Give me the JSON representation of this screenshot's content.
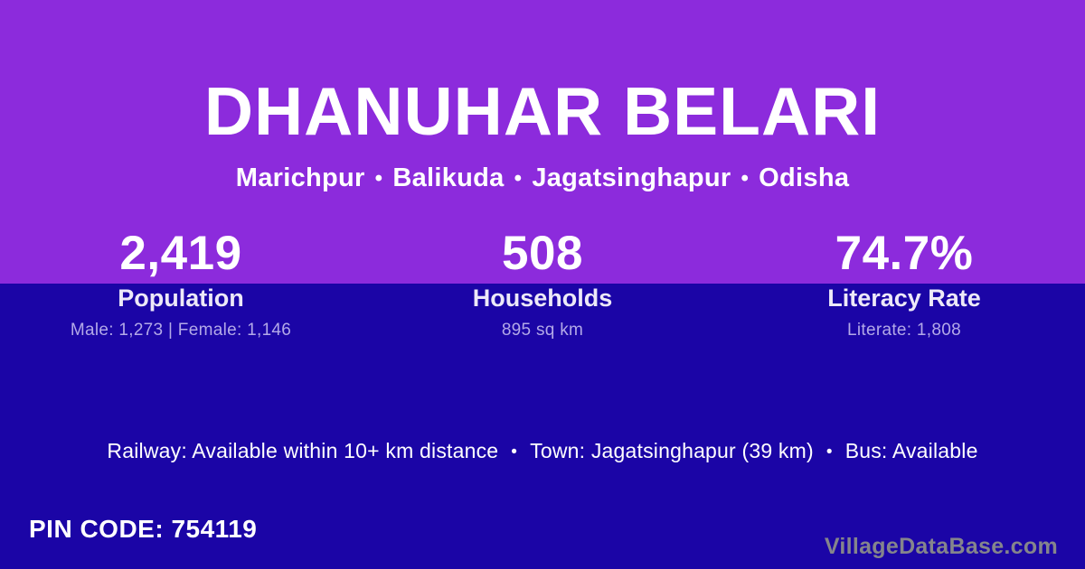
{
  "header": {
    "title": "DHANUHAR BELARI",
    "breadcrumb": [
      "Marichpur",
      "Balikuda",
      "Jagatsinghapur",
      "Odisha"
    ]
  },
  "separator": "•",
  "stats": [
    {
      "value": "2,419",
      "label": "Population",
      "detail": "Male: 1,273 | Female: 1,146"
    },
    {
      "value": "508",
      "label": "Households",
      "detail": "895 sq km"
    },
    {
      "value": "74.7%",
      "label": "Literacy Rate",
      "detail": "Literate: 1,808"
    }
  ],
  "transport": {
    "items": [
      "Railway: Available within 10+ km distance",
      "Town: Jagatsinghapur (39 km)",
      "Bus: Available"
    ]
  },
  "footer": {
    "pin_label": "PIN CODE:",
    "pin_value": "754119",
    "watermark": "VillageDataBase.com"
  },
  "colors": {
    "top_band": "#8C2BDC",
    "bottom_band": "#1B05A6",
    "primary_text": "#FFFFFF",
    "label_text": "#EDE9F8",
    "muted_text": "#B3A9E8",
    "watermark_text": "#85858C"
  }
}
